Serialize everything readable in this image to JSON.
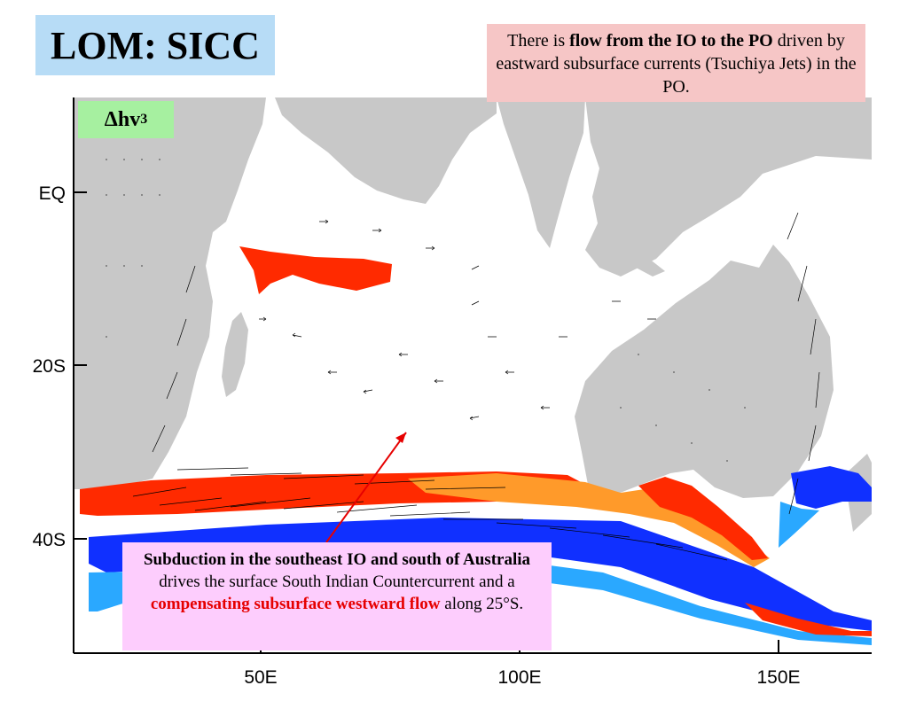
{
  "title": "LOM: SICC",
  "variable_label": {
    "symbol": "Δhv",
    "subscript": "3"
  },
  "top_note": {
    "part1": "There is ",
    "bold": "flow from the IO to the PO",
    "part2": " driven by eastward subsurface currents (Tsuchiya Jets) in the PO."
  },
  "bottom_note": {
    "bold": "Subduction in the southeast IO and south of Australia",
    "part1": " drives the surface South Indian Countercurrent and a ",
    "red": "compensating subsurface westward flow",
    "part2": " along 25°S."
  },
  "axes": {
    "y_ticks": [
      "EQ",
      "20S",
      "40S"
    ],
    "x_ticks": [
      "50E",
      "100E",
      "150E"
    ]
  },
  "colors": {
    "land": "#c8c8c8",
    "positive": "#ff2a00",
    "positive_weak": "#ff9a2a",
    "negative": "#1030ff",
    "negative_weak": "#2aa8ff"
  }
}
